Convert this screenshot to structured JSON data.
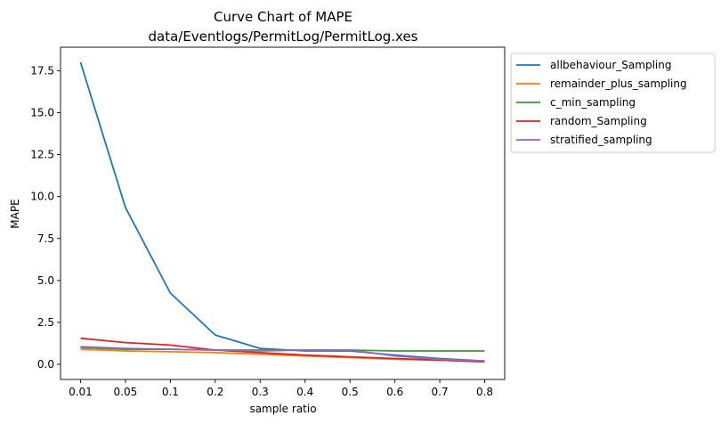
{
  "chart_data": {
    "type": "line",
    "title": "Curve Chart of MAPE",
    "subtitle": "data/Eventlogs/PermitLog/PermitLog.xes",
    "xlabel": "sample ratio",
    "ylabel": "MAPE",
    "categories": [
      "0.01",
      "0.05",
      "0.1",
      "0.2",
      "0.3",
      "0.4",
      "0.5",
      "0.6",
      "0.7",
      "0.8"
    ],
    "ylim": [
      -0.9,
      18.9
    ],
    "yticks": [
      "0.0",
      "2.5",
      "5.0",
      "7.5",
      "10.0",
      "12.5",
      "15.0",
      "17.5"
    ],
    "ytick_values": [
      0,
      2.5,
      5,
      7.5,
      10,
      12.5,
      15,
      17.5
    ],
    "grid": false,
    "legend_position": "outside-right-top",
    "series": [
      {
        "name": "allbehaviour_Sampling",
        "color": "#1f77b4",
        "values": [
          18.0,
          9.35,
          4.25,
          1.75,
          0.95,
          0.8,
          0.8,
          0.55,
          0.35,
          0.2
        ]
      },
      {
        "name": "remainder_plus_sampling",
        "color": "#ff7f0e",
        "values": [
          0.9,
          0.8,
          0.75,
          0.7,
          0.6,
          0.5,
          0.4,
          0.3,
          0.25,
          0.15
        ]
      },
      {
        "name": "c_min_sampling",
        "color": "#2ca02c",
        "values": [
          1.0,
          0.9,
          0.9,
          0.85,
          0.85,
          0.85,
          0.85,
          0.8,
          0.8,
          0.8
        ]
      },
      {
        "name": "random_Sampling",
        "color": "#d62728",
        "values": [
          1.55,
          1.3,
          1.15,
          0.85,
          0.7,
          0.55,
          0.45,
          0.35,
          0.25,
          0.15
        ]
      },
      {
        "name": "stratified_sampling",
        "color": "#9467bd",
        "values": [
          1.05,
          0.95,
          0.9,
          0.85,
          0.8,
          0.85,
          0.85,
          0.5,
          0.3,
          0.2
        ]
      }
    ]
  }
}
